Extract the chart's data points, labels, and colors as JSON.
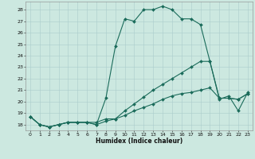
{
  "title": "",
  "xlabel": "Humidex (Indice chaleur)",
  "bg_color": "#cce8e0",
  "grid_color": "#aacccc",
  "line_color": "#1a6b5a",
  "xlim": [
    -0.5,
    23.5
  ],
  "ylim": [
    17.5,
    28.7
  ],
  "yticks": [
    18,
    19,
    20,
    21,
    22,
    23,
    24,
    25,
    26,
    27,
    28
  ],
  "xticks": [
    0,
    1,
    2,
    3,
    4,
    5,
    6,
    7,
    8,
    9,
    10,
    11,
    12,
    13,
    14,
    15,
    16,
    17,
    18,
    19,
    20,
    21,
    22,
    23
  ],
  "line1_x": [
    0,
    1,
    2,
    3,
    4,
    5,
    6,
    7,
    8,
    9,
    10,
    11,
    12,
    13,
    14,
    15,
    16,
    17,
    18,
    19,
    20,
    21,
    22,
    23
  ],
  "line1_y": [
    18.7,
    18.0,
    17.8,
    18.0,
    18.2,
    18.2,
    18.2,
    18.0,
    20.3,
    24.8,
    27.2,
    27.0,
    28.0,
    28.0,
    28.3,
    28.0,
    27.2,
    27.2,
    26.7,
    23.5,
    20.2,
    20.5,
    19.2,
    20.8
  ],
  "line2_x": [
    0,
    1,
    2,
    3,
    4,
    5,
    6,
    7,
    8,
    9,
    10,
    11,
    12,
    13,
    14,
    15,
    16,
    17,
    18,
    19,
    20,
    21,
    22,
    23
  ],
  "line2_y": [
    18.7,
    18.0,
    17.8,
    18.0,
    18.2,
    18.2,
    18.2,
    18.2,
    18.5,
    18.5,
    19.2,
    19.8,
    20.4,
    21.0,
    21.5,
    22.0,
    22.5,
    23.0,
    23.5,
    23.5,
    20.3,
    20.3,
    20.2,
    20.7
  ],
  "line3_x": [
    0,
    1,
    2,
    3,
    4,
    5,
    6,
    7,
    8,
    9,
    10,
    11,
    12,
    13,
    14,
    15,
    16,
    17,
    18,
    19,
    20,
    21,
    22,
    23
  ],
  "line3_y": [
    18.7,
    18.0,
    17.8,
    18.0,
    18.2,
    18.2,
    18.2,
    18.0,
    18.3,
    18.5,
    18.8,
    19.2,
    19.5,
    19.8,
    20.2,
    20.5,
    20.7,
    20.8,
    21.0,
    21.2,
    20.3,
    20.3,
    20.2,
    20.7
  ],
  "xlabel_fontsize": 5.5,
  "tick_fontsize": 4.5,
  "linewidth": 0.8,
  "markersize": 2.0
}
